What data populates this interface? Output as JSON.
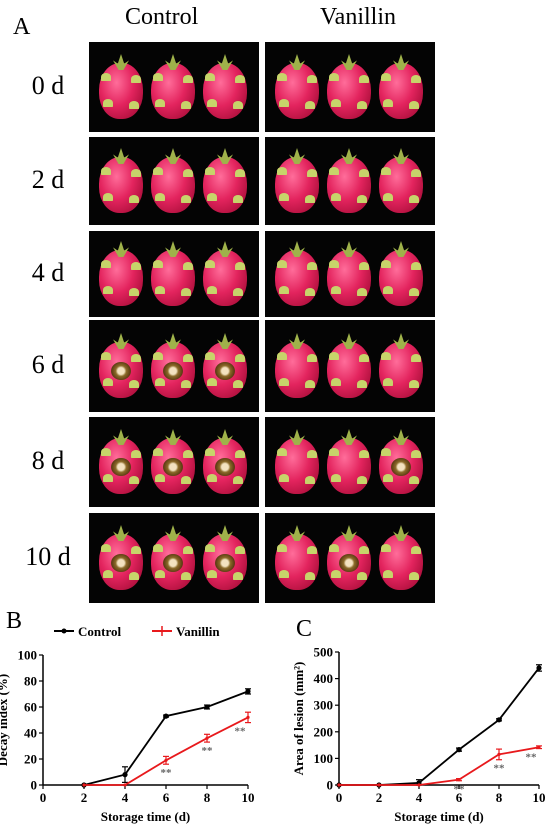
{
  "panel_a": {
    "letter": "A",
    "col_headers": [
      "Control",
      "Vanillin"
    ],
    "rows": [
      {
        "day": "0 d",
        "control_lesion": [
          0,
          0,
          0
        ],
        "vanillin_lesion": [
          0,
          0,
          0
        ]
      },
      {
        "day": "2 d",
        "control_lesion": [
          0,
          0,
          0
        ],
        "vanillin_lesion": [
          0,
          0,
          0
        ]
      },
      {
        "day": "4 d",
        "control_lesion": [
          0,
          0,
          0
        ],
        "vanillin_lesion": [
          0,
          0,
          0
        ]
      },
      {
        "day": "6 d",
        "control_lesion": [
          1,
          1,
          1
        ],
        "vanillin_lesion": [
          0,
          0,
          0
        ]
      },
      {
        "day": "8 d",
        "control_lesion": [
          1,
          1,
          1
        ],
        "vanillin_lesion": [
          0,
          0,
          1
        ]
      },
      {
        "day": "10 d",
        "control_lesion": [
          1,
          1,
          1
        ],
        "vanillin_lesion": [
          0,
          1,
          0
        ]
      }
    ]
  },
  "legend": {
    "control": "Control",
    "vanillin": "Vanillin"
  },
  "colors": {
    "control": "#000000",
    "vanillin": "#e8191c",
    "photo_bg": "#040404",
    "sig_mark": "#666666"
  },
  "chart_data": [
    {
      "type": "line",
      "letter": "B",
      "xlabel": "Storage time (d)",
      "ylabel": "Decay index (%)",
      "xlim": [
        0,
        10
      ],
      "ylim": [
        0,
        100
      ],
      "xticks": [
        0,
        2,
        4,
        6,
        8,
        10
      ],
      "yticks": [
        0,
        20,
        40,
        60,
        80,
        100
      ],
      "x": [
        2,
        4,
        6,
        8,
        10
      ],
      "series": [
        {
          "name": "Control",
          "values": [
            0,
            8,
            53,
            60,
            72
          ],
          "errors": [
            0,
            6,
            0.8,
            1.5,
            2
          ]
        },
        {
          "name": "Vanillin",
          "values": [
            0,
            0,
            19,
            36,
            52
          ],
          "errors": [
            0,
            0,
            3,
            3,
            4
          ]
        }
      ],
      "annotations": [
        {
          "x": 6,
          "text": "**"
        },
        {
          "x": 8,
          "text": "**"
        },
        {
          "x": 10,
          "text": "**"
        }
      ]
    },
    {
      "type": "line",
      "letter": "C",
      "xlabel": "Storage time (d)",
      "ylabel": "Area of lesion (mm²)",
      "xlim": [
        0,
        10
      ],
      "ylim": [
        0,
        500
      ],
      "xticks": [
        0,
        2,
        4,
        6,
        8,
        10
      ],
      "yticks": [
        0,
        100,
        200,
        300,
        400,
        500
      ],
      "x": [
        0,
        2,
        4,
        6,
        8,
        10
      ],
      "series": [
        {
          "name": "Control",
          "values": [
            0,
            0,
            8,
            133,
            245,
            440
          ],
          "errors": [
            0,
            0,
            12,
            6,
            4,
            12
          ]
        },
        {
          "name": "Vanillin",
          "values": [
            0,
            0,
            0,
            20,
            115,
            142
          ],
          "errors": [
            0,
            0,
            0,
            4,
            20,
            5
          ]
        }
      ],
      "annotations": [
        {
          "x": 6,
          "text": "**"
        },
        {
          "x": 8,
          "text": "**"
        },
        {
          "x": 10,
          "text": "**"
        }
      ]
    }
  ]
}
